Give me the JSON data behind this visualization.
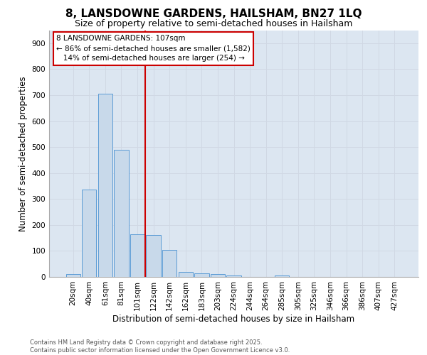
{
  "title_line1": "8, LANSDOWNE GARDENS, HAILSHAM, BN27 1LQ",
  "title_line2": "Size of property relative to semi-detached houses in Hailsham",
  "xlabel": "Distribution of semi-detached houses by size in Hailsham",
  "ylabel": "Number of semi-detached properties",
  "categories": [
    "20sqm",
    "40sqm",
    "61sqm",
    "81sqm",
    "101sqm",
    "122sqm",
    "142sqm",
    "162sqm",
    "183sqm",
    "203sqm",
    "224sqm",
    "244sqm",
    "264sqm",
    "285sqm",
    "305sqm",
    "325sqm",
    "346sqm",
    "366sqm",
    "386sqm",
    "407sqm",
    "427sqm"
  ],
  "values": [
    10,
    335,
    705,
    490,
    165,
    160,
    105,
    20,
    15,
    10,
    5,
    0,
    0,
    5,
    0,
    0,
    0,
    0,
    0,
    0,
    0
  ],
  "bar_color": "#c8d9ea",
  "bar_edge_color": "#5b9bd5",
  "vline_x": 4.5,
  "annotation_text": "8 LANSDOWNE GARDENS: 107sqm\n← 86% of semi-detached houses are smaller (1,582)\n   14% of semi-detached houses are larger (254) →",
  "annotation_box_color": "#ffffff",
  "annotation_box_edge": "#cc0000",
  "vline_color": "#cc0000",
  "grid_color": "#d0d8e4",
  "background_color": "#dce6f1",
  "ylim": [
    0,
    950
  ],
  "yticks": [
    0,
    100,
    200,
    300,
    400,
    500,
    600,
    700,
    800,
    900
  ],
  "footer_text": "Contains HM Land Registry data © Crown copyright and database right 2025.\nContains public sector information licensed under the Open Government Licence v3.0.",
  "title_fontsize": 11,
  "subtitle_fontsize": 9,
  "axis_label_fontsize": 8.5,
  "tick_fontsize": 7.5,
  "annotation_fontsize": 7.5
}
